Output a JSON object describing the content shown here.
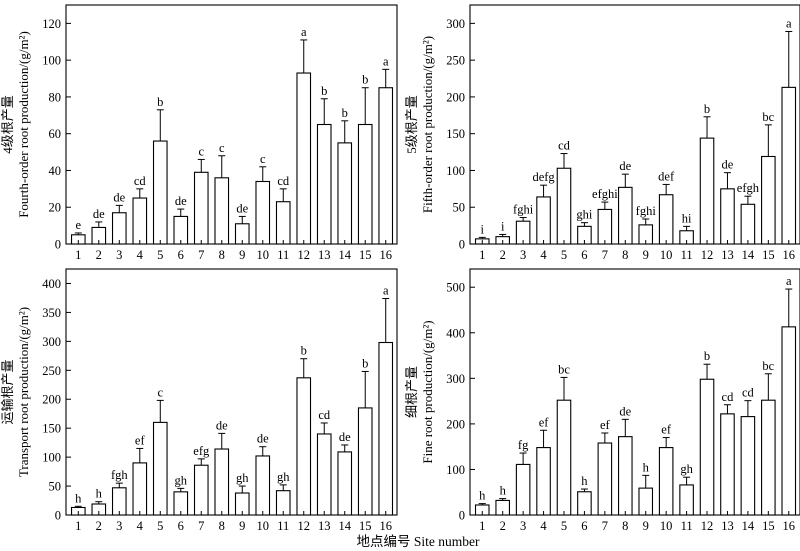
{
  "figure": {
    "xlabel": "地点编号 Site number"
  },
  "chart_data": [
    {
      "type": "bar",
      "categories": [
        "1",
        "2",
        "3",
        "4",
        "5",
        "6",
        "7",
        "8",
        "9",
        "10",
        "11",
        "12",
        "13",
        "14",
        "15",
        "16"
      ],
      "values": [
        5,
        9,
        17,
        25,
        56,
        15,
        39,
        36,
        11,
        34,
        23,
        93,
        65,
        55,
        65,
        85
      ],
      "errors": [
        1,
        3,
        4,
        5,
        17,
        4,
        7,
        12,
        4,
        8,
        7,
        18,
        14,
        12,
        20,
        10
      ],
      "letters": [
        "e",
        "de",
        "de",
        "cd",
        "b",
        "de",
        "c",
        "c",
        "de",
        "c",
        "cd",
        "a",
        "b",
        "b",
        "b",
        "a"
      ],
      "ylabel_cn": "4级根产量",
      "ylabel": "Fourth-order root production/(g/m²)",
      "yticks": [
        0,
        20,
        40,
        60,
        80,
        100,
        120
      ],
      "ylim": [
        0,
        130
      ]
    },
    {
      "type": "bar",
      "categories": [
        "1",
        "2",
        "3",
        "4",
        "5",
        "6",
        "7",
        "8",
        "9",
        "10",
        "11",
        "12",
        "13",
        "14",
        "15",
        "16"
      ],
      "values": [
        7,
        10,
        31,
        64,
        103,
        24,
        47,
        77,
        26,
        67,
        18,
        144,
        75,
        54,
        119,
        213
      ],
      "errors": [
        2,
        3,
        5,
        16,
        20,
        5,
        10,
        18,
        8,
        14,
        6,
        29,
        22,
        11,
        43,
        76
      ],
      "letters": [
        "i",
        "i",
        "fghi",
        "defg",
        "cd",
        "ghi",
        "efghi",
        "de",
        "fghi",
        "def",
        "hi",
        "b",
        "de",
        "efgh",
        "bc",
        "a"
      ],
      "ylabel_cn": "5级根产量",
      "ylabel": "Fifth-order root production/(g/m²)",
      "yticks": [
        0,
        50,
        100,
        150,
        200,
        250,
        300
      ],
      "ylim": [
        0,
        325
      ]
    },
    {
      "type": "bar",
      "categories": [
        "1",
        "2",
        "3",
        "4",
        "5",
        "6",
        "7",
        "8",
        "9",
        "10",
        "11",
        "12",
        "13",
        "14",
        "15",
        "16"
      ],
      "values": [
        13,
        19,
        47,
        90,
        160,
        40,
        86,
        114,
        38,
        102,
        42,
        237,
        140,
        109,
        185,
        298
      ],
      "errors": [
        2,
        4,
        8,
        25,
        38,
        6,
        11,
        27,
        12,
        16,
        10,
        33,
        19,
        12,
        63,
        76
      ],
      "letters": [
        "h",
        "h",
        "fgh",
        "ef",
        "c",
        "gh",
        "efg",
        "de",
        "gh",
        "de",
        "gh",
        "b",
        "cd",
        "de",
        "b",
        "a"
      ],
      "ylabel_cn": "运输根产量",
      "ylabel": "Transport root production/(g/m²)",
      "yticks": [
        0,
        50,
        100,
        150,
        200,
        250,
        300,
        350,
        400
      ],
      "ylim": [
        0,
        425
      ]
    },
    {
      "type": "bar",
      "categories": [
        "1",
        "2",
        "3",
        "4",
        "5",
        "6",
        "7",
        "8",
        "9",
        "10",
        "11",
        "12",
        "13",
        "14",
        "15",
        "16"
      ],
      "values": [
        22,
        32,
        111,
        148,
        252,
        51,
        158,
        172,
        59,
        148,
        66,
        298,
        222,
        216,
        252,
        413
      ],
      "errors": [
        3,
        4,
        25,
        38,
        50,
        6,
        22,
        38,
        28,
        22,
        17,
        33,
        20,
        35,
        58,
        83
      ],
      "letters": [
        "h",
        "h",
        "fg",
        "ef",
        "bc",
        "h",
        "ef",
        "de",
        "h",
        "ef",
        "gh",
        "b",
        "cd",
        "cd",
        "bc",
        "a"
      ],
      "ylabel_cn": "细根产量",
      "ylabel": "Fine root production/(g/m²)",
      "yticks": [
        0,
        100,
        200,
        300,
        400,
        500
      ],
      "ylim": [
        0,
        540
      ]
    }
  ]
}
